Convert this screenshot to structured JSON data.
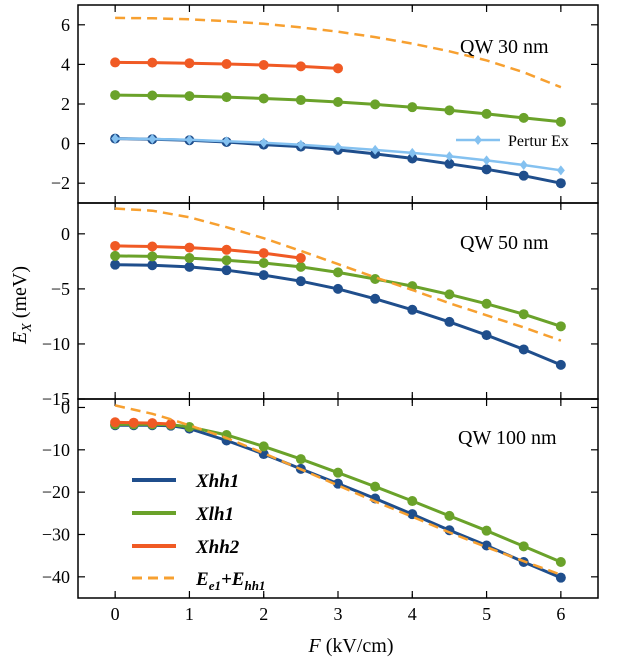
{
  "colors": {
    "xhh1": "#1f4e8c",
    "xlh1": "#6aa22a",
    "xhh2": "#f05a24",
    "band": "#f7a030",
    "pertur": "#84c1f0"
  },
  "figure": {
    "xlabel_italic": "F",
    "xlabel_rest": " (kV/cm)",
    "ylabel_italic": "E",
    "ylabel_sub": "X",
    "ylabel_rest": " (meV)"
  },
  "legend_bottom": {
    "xhh1": "Xhh1",
    "xlh1": "Xlh1",
    "xhh2": "Xhh2",
    "band_e": "E",
    "band_e_sub": "e1",
    "band_plus": "+E",
    "band_hh_sub": "hh1"
  },
  "chart_data": [
    {
      "type": "line",
      "annotation": "QW 30 nm",
      "xlim": [
        -0.5,
        6.5
      ],
      "ylim": [
        -3,
        7
      ],
      "xticks": [
        0,
        1,
        2,
        3,
        4,
        5,
        6
      ],
      "yticks": [
        -2,
        0,
        2,
        4,
        6
      ],
      "ytick_labels": [
        "−2",
        "0",
        "2",
        "4",
        "6"
      ],
      "legend": {
        "pertur": "Pertur Ex"
      },
      "series": [
        {
          "name": "Xhh1",
          "key": "xhh1",
          "marker": "circle",
          "x": [
            0,
            0.5,
            1,
            1.5,
            2,
            2.5,
            3,
            3.5,
            4,
            4.5,
            5,
            5.5,
            6
          ],
          "y": [
            0.25,
            0.22,
            0.17,
            0.08,
            -0.05,
            -0.15,
            -0.32,
            -0.52,
            -0.75,
            -1.02,
            -1.3,
            -1.62,
            -2.0
          ]
        },
        {
          "name": "Xlh1",
          "key": "xlh1",
          "marker": "circle",
          "x": [
            0,
            0.5,
            1,
            1.5,
            2,
            2.5,
            3,
            3.5,
            4,
            4.5,
            5,
            5.5,
            6
          ],
          "y": [
            2.45,
            2.43,
            2.4,
            2.35,
            2.28,
            2.2,
            2.1,
            1.98,
            1.84,
            1.68,
            1.5,
            1.3,
            1.1
          ]
        },
        {
          "name": "Xhh2",
          "key": "xhh2",
          "marker": "circle",
          "x": [
            0,
            0.5,
            1,
            1.5,
            2,
            2.5,
            3
          ],
          "y": [
            4.1,
            4.09,
            4.06,
            4.02,
            3.97,
            3.9,
            3.8
          ]
        },
        {
          "name": "Pertur Ex",
          "key": "pertur",
          "marker": "diamond",
          "x": [
            0,
            0.5,
            1,
            1.5,
            2,
            2.5,
            3,
            3.5,
            4,
            4.5,
            5,
            5.5,
            6
          ],
          "y": [
            0.25,
            0.23,
            0.19,
            0.12,
            0.04,
            -0.06,
            -0.18,
            -0.32,
            -0.47,
            -0.64,
            -0.85,
            -1.08,
            -1.35
          ]
        },
        {
          "name": "Ee1+Ehh1",
          "key": "band",
          "marker": "none",
          "dashed": true,
          "x": [
            0,
            0.5,
            1,
            1.5,
            2,
            2.5,
            3,
            3.5,
            4,
            4.5,
            5,
            5.5,
            6
          ],
          "y": [
            6.35,
            6.33,
            6.28,
            6.18,
            6.05,
            5.87,
            5.65,
            5.38,
            5.05,
            4.66,
            4.2,
            3.6,
            2.85
          ]
        }
      ]
    },
    {
      "type": "line",
      "annotation": "QW 50 nm",
      "xlim": [
        -0.5,
        6.5
      ],
      "ylim": [
        -15,
        2.8
      ],
      "xticks": [
        0,
        1,
        2,
        3,
        4,
        5,
        6
      ],
      "yticks": [
        -15,
        -10,
        -5,
        0
      ],
      "ytick_labels": [
        "−15",
        "−10",
        "−5",
        "0"
      ],
      "series": [
        {
          "name": "Xhh1",
          "key": "xhh1",
          "marker": "circle",
          "x": [
            0,
            0.5,
            1,
            1.5,
            2,
            2.5,
            3,
            3.5,
            4,
            4.5,
            5,
            5.5,
            6
          ],
          "y": [
            -2.8,
            -2.85,
            -3.0,
            -3.3,
            -3.75,
            -4.3,
            -5.0,
            -5.9,
            -6.9,
            -8.0,
            -9.2,
            -10.5,
            -11.9
          ]
        },
        {
          "name": "Xlh1",
          "key": "xlh1",
          "marker": "circle",
          "x": [
            0,
            0.5,
            1,
            1.5,
            2,
            2.5,
            3,
            3.5,
            4,
            4.5,
            5,
            5.5,
            6
          ],
          "y": [
            -2.0,
            -2.05,
            -2.2,
            -2.4,
            -2.65,
            -3.0,
            -3.5,
            -4.1,
            -4.75,
            -5.5,
            -6.35,
            -7.3,
            -8.4
          ]
        },
        {
          "name": "Xhh2",
          "key": "xhh2",
          "marker": "circle",
          "x": [
            0,
            0.5,
            1,
            1.5,
            2,
            2.5
          ],
          "y": [
            -1.1,
            -1.15,
            -1.25,
            -1.45,
            -1.75,
            -2.2
          ]
        },
        {
          "name": "Ee1+Ehh1",
          "key": "band",
          "marker": "none",
          "dashed": true,
          "x": [
            0,
            0.5,
            1,
            1.5,
            2,
            2.5,
            3,
            3.5,
            4,
            4.5,
            5,
            5.5,
            6
          ],
          "y": [
            2.3,
            2.1,
            1.5,
            0.6,
            -0.4,
            -1.55,
            -2.75,
            -3.95,
            -5.1,
            -6.3,
            -7.4,
            -8.5,
            -9.7
          ]
        }
      ]
    },
    {
      "type": "line",
      "annotation": "QW 100 nm",
      "xlim": [
        -0.5,
        6.5
      ],
      "ylim": [
        -45,
        2
      ],
      "xticks": [
        0,
        1,
        2,
        3,
        4,
        5,
        6
      ],
      "xtick_labels": [
        "0",
        "1",
        "2",
        "3",
        "4",
        "5",
        "6"
      ],
      "yticks": [
        -40,
        -30,
        -20,
        -10,
        0
      ],
      "ytick_labels": [
        "−40",
        "−30",
        "−20",
        "−10",
        "0"
      ],
      "series": [
        {
          "name": "Xhh1",
          "key": "xhh1",
          "marker": "circle",
          "x": [
            0,
            0.25,
            0.5,
            0.75,
            1,
            1.5,
            2,
            2.5,
            3,
            3.5,
            4,
            4.5,
            5,
            5.5,
            6
          ],
          "y": [
            -4.2,
            -4.2,
            -4.2,
            -4.3,
            -5.0,
            -7.8,
            -11.0,
            -14.5,
            -18.0,
            -21.5,
            -25.2,
            -29.0,
            -32.6,
            -36.5,
            -40.2
          ]
        },
        {
          "name": "Xlh1",
          "key": "xlh1",
          "marker": "circle",
          "x": [
            0,
            0.25,
            0.5,
            0.75,
            1,
            1.5,
            2,
            2.5,
            3,
            3.5,
            4,
            4.5,
            5,
            5.5,
            6
          ],
          "y": [
            -4.0,
            -4.0,
            -4.0,
            -4.1,
            -4.6,
            -6.5,
            -9.2,
            -12.2,
            -15.4,
            -18.7,
            -22.1,
            -25.6,
            -29.1,
            -32.8,
            -36.5
          ]
        },
        {
          "name": "Xhh2",
          "key": "xhh2",
          "marker": "circle",
          "x": [
            0,
            0.25,
            0.5,
            0.75
          ],
          "y": [
            -3.5,
            -3.6,
            -3.7,
            -3.9
          ]
        },
        {
          "name": "Ee1+Ehh1",
          "key": "band",
          "marker": "none",
          "dashed": true,
          "x": [
            0,
            0.25,
            0.5,
            0.75,
            1,
            1.5,
            2,
            2.5,
            3,
            3.5,
            4,
            4.5,
            5,
            5.5,
            6
          ],
          "y": [
            0.5,
            -0.5,
            -1.5,
            -2.8,
            -4.2,
            -7.2,
            -10.8,
            -14.6,
            -18.4,
            -22.2,
            -25.8,
            -29.5,
            -33.0,
            -36.3,
            -39.5
          ]
        }
      ]
    }
  ]
}
